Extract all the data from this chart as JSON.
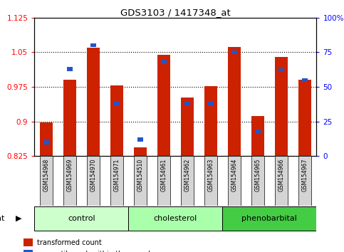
{
  "title": "GDS3103 / 1417348_at",
  "samples": [
    "GSM154968",
    "GSM154969",
    "GSM154970",
    "GSM154971",
    "GSM154510",
    "GSM154961",
    "GSM154962",
    "GSM154963",
    "GSM154964",
    "GSM154965",
    "GSM154966",
    "GSM154967"
  ],
  "groups": [
    {
      "name": "control",
      "indices": [
        0,
        1,
        2,
        3
      ]
    },
    {
      "name": "cholesterol",
      "indices": [
        4,
        5,
        6,
        7
      ]
    },
    {
      "name": "phenobarbital",
      "indices": [
        8,
        9,
        10,
        11
      ]
    }
  ],
  "group_colors": [
    "#ccffcc",
    "#aaffaa",
    "#44cc44"
  ],
  "red_values": [
    0.898,
    0.99,
    1.06,
    0.978,
    0.845,
    1.045,
    0.952,
    0.976,
    1.062,
    0.912,
    1.04,
    0.99
  ],
  "blue_values_pct": [
    10,
    63,
    80,
    38,
    12,
    68,
    38,
    38,
    75,
    18,
    62,
    55
  ],
  "ylim_left": [
    0.825,
    1.125
  ],
  "ylim_right": [
    0,
    100
  ],
  "yticks_left": [
    0.825,
    0.9,
    0.975,
    1.05,
    1.125
  ],
  "yticks_right": [
    0,
    25,
    50,
    75,
    100
  ],
  "bar_color_red": "#cc2200",
  "bar_color_blue": "#2255cc",
  "base": 0.825,
  "background_color": "#ffffff"
}
